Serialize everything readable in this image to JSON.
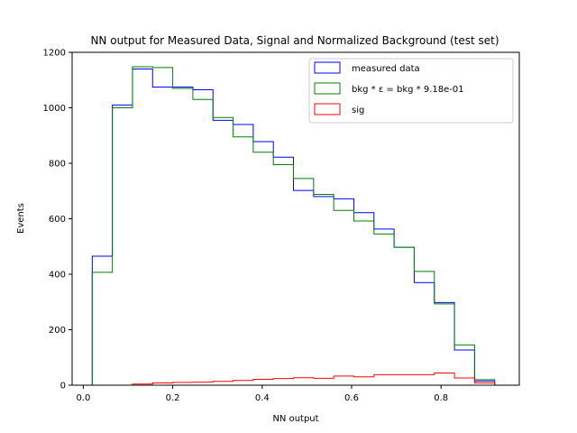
{
  "chart_data": {
    "type": "step-histogram",
    "title": "NN output for Measured Data, Signal and Normalized Background (test set)",
    "xlabel": "NN output",
    "ylabel": "Events",
    "xlim": [
      -0.025,
      0.975
    ],
    "ylim": [
      0,
      1200
    ],
    "xticks": [
      0.0,
      0.2,
      0.4,
      0.6,
      0.8
    ],
    "xtick_labels": [
      "0.0",
      "0.2",
      "0.4",
      "0.6",
      "0.8"
    ],
    "yticks": [
      0,
      200,
      400,
      600,
      800,
      1000,
      1200
    ],
    "ytick_labels": [
      "0",
      "200",
      "400",
      "600",
      "800",
      "1000",
      "1200"
    ],
    "grid": false,
    "legend_position": "upper right",
    "bin_edges": [
      0.02,
      0.065,
      0.11,
      0.155,
      0.2,
      0.245,
      0.29,
      0.335,
      0.38,
      0.425,
      0.47,
      0.515,
      0.56,
      0.605,
      0.65,
      0.695,
      0.74,
      0.785,
      0.83,
      0.875,
      0.92
    ],
    "series": [
      {
        "name": "measured data",
        "color": "#0000ff",
        "values": [
          465,
          1010,
          1140,
          1075,
          1075,
          1065,
          955,
          940,
          878,
          822,
          702,
          680,
          672,
          622,
          563,
          497,
          370,
          298,
          127,
          15
        ]
      },
      {
        "name": "bkg * ε = bkg * 9.18e-01",
        "color": "#008000",
        "values": [
          407,
          1000,
          1148,
          1145,
          1070,
          1030,
          965,
          895,
          840,
          795,
          745,
          688,
          630,
          592,
          545,
          497,
          410,
          293,
          145,
          20
        ]
      },
      {
        "name": "sig",
        "color": "#ff0000",
        "values": [
          0,
          0,
          4,
          8,
          10,
          11,
          14,
          17,
          21,
          24,
          27,
          25,
          33,
          30,
          38,
          38,
          38,
          44,
          26,
          8
        ]
      }
    ]
  }
}
